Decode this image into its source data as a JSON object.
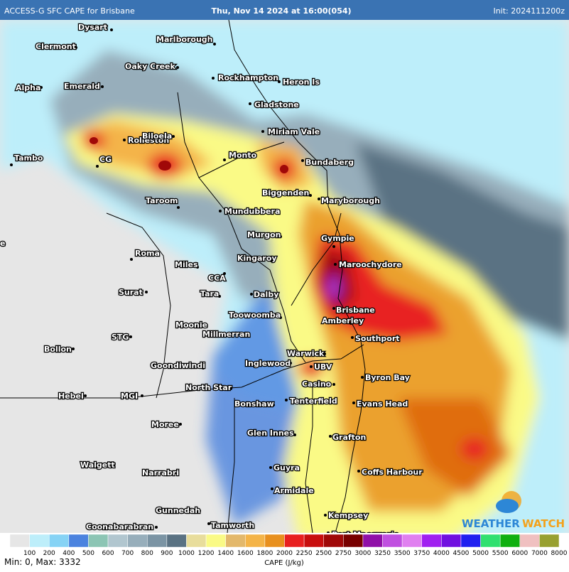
{
  "header": {
    "title": "ACCESS-G SFC CAPE for Brisbane",
    "valid": "Thu, Nov 14 2024 at 16:00(054)",
    "init": "Init: 2024111200z"
  },
  "places": [
    "Dysart",
    "Clermont",
    "Marlborough",
    "Oaky Creek",
    "Alpha",
    "Emerald",
    "Rockhampton",
    "Heron Is",
    "Gladstone",
    "Miriam Vale",
    "Rolleston",
    "Biloela",
    "CG",
    "Tambo",
    "Monto",
    "Bundaberg",
    "Taroom",
    "Biggenden",
    "Maryborough",
    "Mundubbera",
    "Murgon",
    "Gympie",
    "e",
    "Roma",
    "Kingaroy",
    "Miles",
    "Maroochydore",
    "CCA",
    "Surat",
    "Tara",
    "Dalby",
    "Brisbane",
    "Toowoomba",
    "Amberley",
    "Moonie",
    "Millmerran",
    "STG",
    "Southport",
    "Bollon",
    "Warwick",
    "Goondiwindi",
    "Inglewood",
    "UBV",
    "Byron Bay",
    "Casino",
    "North Star",
    "Hebel",
    "MGI",
    "Bonshaw",
    "Tenterfield",
    "Evans Head",
    "Moree",
    "Glen Innes",
    "Grafton",
    "Walgett",
    "Guyra",
    "Coffs Harbour",
    "Narrabri",
    "Armidale",
    "Gunnedah",
    "Kempsey",
    "Coonabarabran",
    "Tamworth",
    "Port Macquarie"
  ],
  "watermark": {
    "part1": "WEATHER",
    "part2": "WATCH"
  },
  "legend": {
    "colors": [
      "#e6e6e6",
      "#bdeefa",
      "#86d3f5",
      "#4b83df",
      "#8cc5b4",
      "#b1c6cf",
      "#97aebb",
      "#7b94a4",
      "#5a7283",
      "#e8dd9c",
      "#fafa86",
      "#e3b86b",
      "#f4b448",
      "#e8901e",
      "#e82020",
      "#c80e0e",
      "#a00808",
      "#780000",
      "#9010a8",
      "#c050e0",
      "#e080f0",
      "#a020f0",
      "#7010e0",
      "#2020f0",
      "#30e070",
      "#10b010",
      "#f0c0c0",
      "#98a030"
    ],
    "labels": [
      100,
      200,
      400,
      500,
      600,
      700,
      800,
      900,
      1000,
      1200,
      1400,
      1600,
      1800,
      2000,
      2250,
      2500,
      2750,
      3000,
      3250,
      3500,
      3750,
      4000,
      4500,
      5000,
      5500,
      6000,
      7000,
      8000
    ],
    "title": "CAPE (J/kg)"
  },
  "footer": {
    "minmax": "Min: 0, Max: 3332"
  }
}
